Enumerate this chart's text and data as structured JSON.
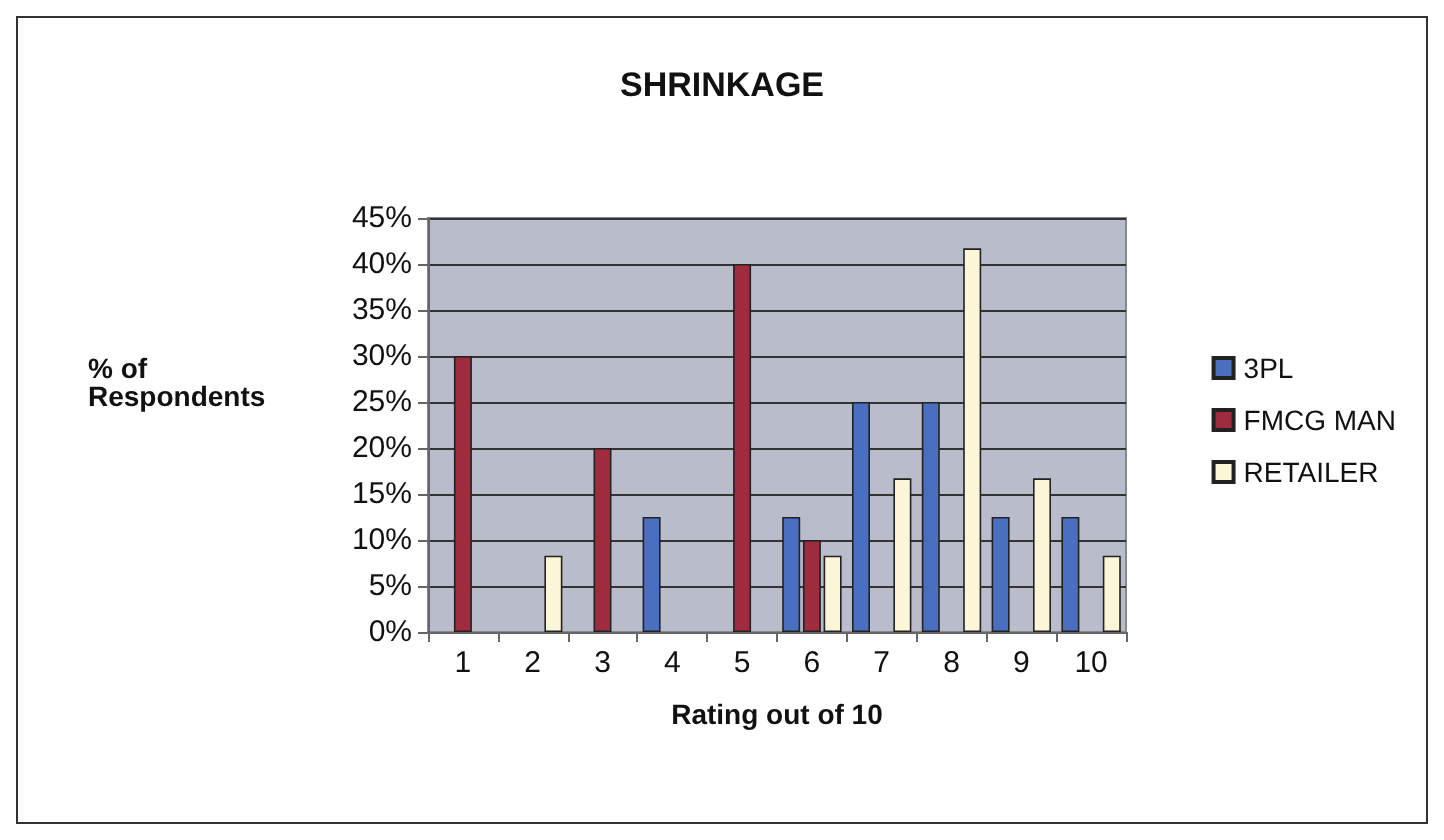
{
  "chart_data": {
    "type": "bar",
    "title": "SHRINKAGE",
    "xlabel": "Rating out of 10",
    "ylabel": "% of\nRespondents",
    "categories": [
      "1",
      "2",
      "3",
      "4",
      "5",
      "6",
      "7",
      "8",
      "9",
      "10"
    ],
    "series": [
      {
        "name": "3PL",
        "color": "#4a6fc0",
        "values": [
          null,
          null,
          null,
          12.5,
          null,
          12.5,
          25,
          25,
          12.5,
          12.5
        ]
      },
      {
        "name": "FMCG MAN",
        "color": "#9e2b3e",
        "values": [
          30,
          null,
          20,
          null,
          40,
          10,
          null,
          null,
          null,
          null
        ]
      },
      {
        "name": "RETAILER",
        "color": "#fbf6d8",
        "values": [
          null,
          8.3,
          null,
          null,
          null,
          8.3,
          16.7,
          41.7,
          16.7,
          8.3
        ]
      }
    ],
    "ylim": [
      0,
      45
    ],
    "yticks": [
      {
        "value": 0,
        "label": "0%"
      },
      {
        "value": 5,
        "label": "5%"
      },
      {
        "value": 10,
        "label": "10%"
      },
      {
        "value": 15,
        "label": "15%"
      },
      {
        "value": 20,
        "label": "20%"
      },
      {
        "value": 25,
        "label": "25%"
      },
      {
        "value": 30,
        "label": "30%"
      },
      {
        "value": 35,
        "label": "35%"
      },
      {
        "value": 40,
        "label": "40%"
      },
      {
        "value": 45,
        "label": "45%"
      }
    ],
    "grid": "y",
    "legend": "right"
  }
}
